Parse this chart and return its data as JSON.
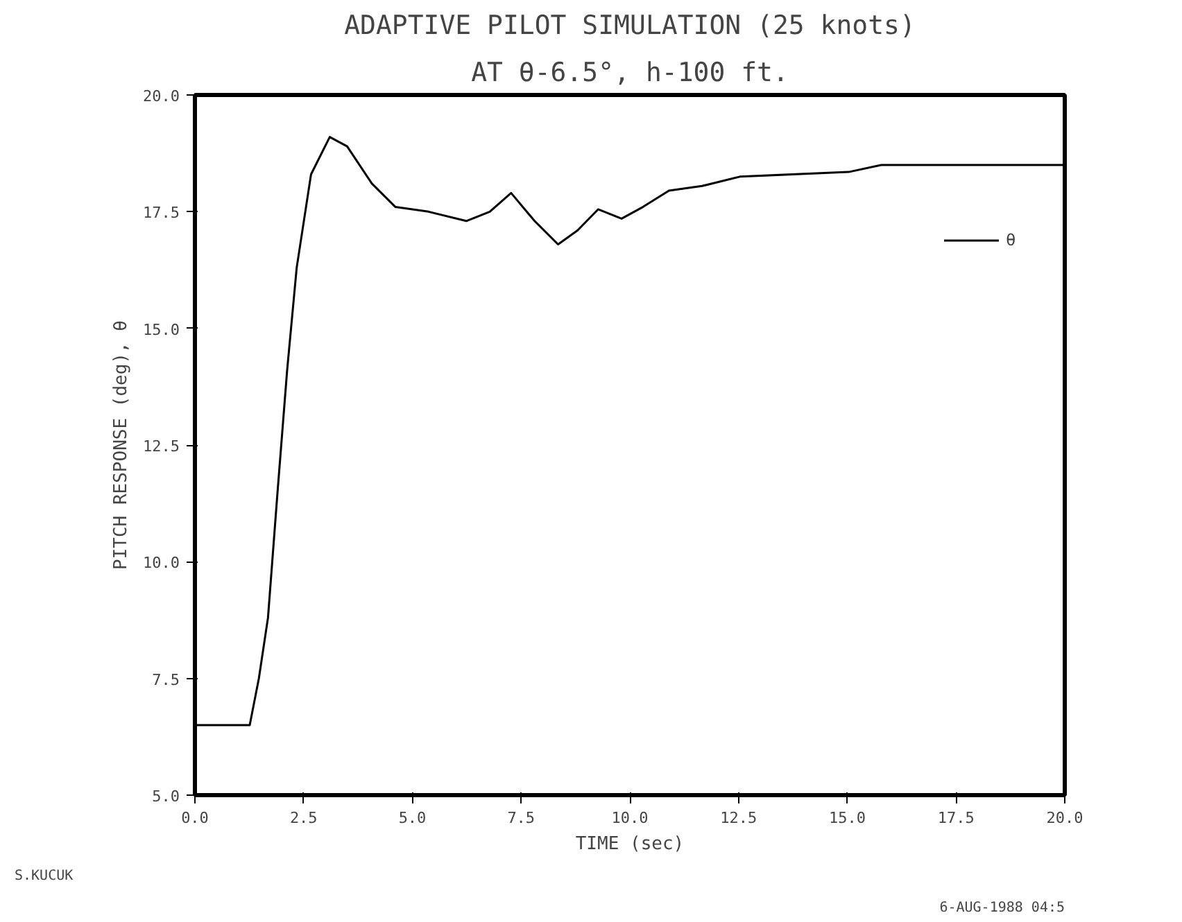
{
  "chart_data": {
    "type": "line",
    "title": "ADAPTIVE PILOT SIMULATION (25 knots)",
    "subtitle": "AT θ-6.5°, h-100 ft.",
    "xlabel": "TIME (sec)",
    "ylabel": "PITCH RESPONSE (deg), θ",
    "xlim": [
      0,
      20
    ],
    "ylim": [
      5,
      20
    ],
    "xticks": [
      {
        "value": 0,
        "label": "0.0"
      },
      {
        "value": 2.5,
        "label": "2.5"
      },
      {
        "value": 5,
        "label": "5.0"
      },
      {
        "value": 7.5,
        "label": "7.5"
      },
      {
        "value": 10,
        "label": "10.0"
      },
      {
        "value": 12.5,
        "label": "12.5"
      },
      {
        "value": 15,
        "label": "15.0"
      },
      {
        "value": 17.5,
        "label": "17.5"
      },
      {
        "value": 20,
        "label": "20.0"
      }
    ],
    "yticks": [
      {
        "value": 5,
        "label": "5.0"
      },
      {
        "value": 7.5,
        "label": "7.5"
      },
      {
        "value": 10,
        "label": "10.0"
      },
      {
        "value": 12.5,
        "label": "12.5"
      },
      {
        "value": 15,
        "label": "15.0"
      },
      {
        "value": 17.5,
        "label": "17.5"
      },
      {
        "value": 20,
        "label": "20.0"
      }
    ],
    "series": [
      {
        "name": "θ",
        "color": "#000000",
        "x": [
          0,
          1.26,
          1.47,
          1.68,
          1.9,
          2.12,
          2.34,
          2.67,
          3.1,
          3.5,
          4.07,
          4.61,
          5.37,
          6.24,
          6.78,
          7.27,
          7.81,
          8.35,
          8.8,
          9.27,
          9.81,
          10.3,
          10.9,
          11.66,
          12.53,
          15.03,
          15.78,
          20
        ],
        "values": [
          6.5,
          6.5,
          7.5,
          8.8,
          11.5,
          14.1,
          16.3,
          18.3,
          19.1,
          18.9,
          18.1,
          17.6,
          17.5,
          17.3,
          17.5,
          17.9,
          17.3,
          16.8,
          17.1,
          17.55,
          17.35,
          17.6,
          17.95,
          18.05,
          18.25,
          18.35,
          18.5,
          18.5
        ]
      }
    ],
    "grid": false,
    "legend": "top right",
    "annotations": [
      "S.KUCUK",
      "6-AUG-1988 04:5"
    ]
  }
}
